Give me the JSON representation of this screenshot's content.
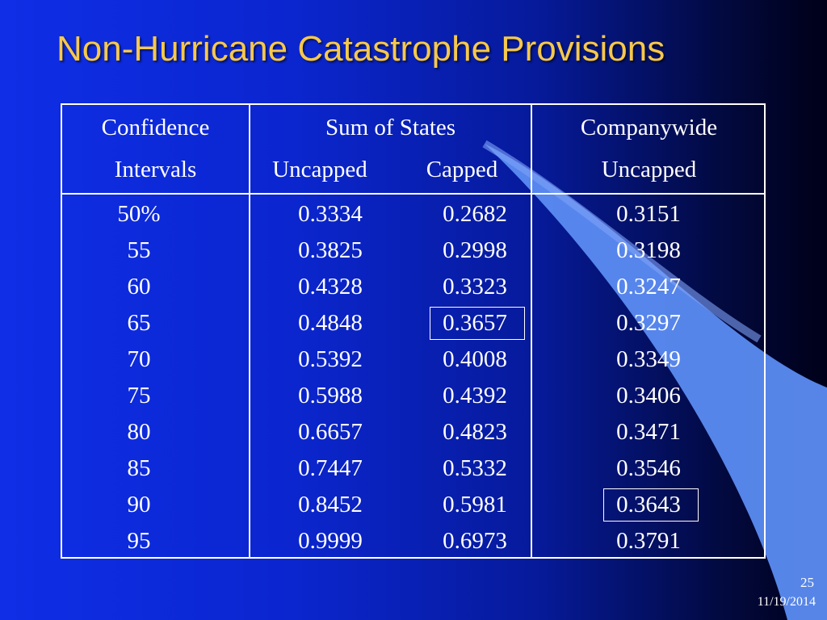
{
  "slide": {
    "title": "Non-Hurricane Catastrophe Provisions",
    "page_number": "25",
    "date": "11/19/2014"
  },
  "table": {
    "headers": {
      "col1_line1": "Confidence",
      "col1_line2": "Intervals",
      "col2_line1": "Sum of States",
      "col2_sub_a": "Uncapped",
      "col2_sub_b": "Capped",
      "col3_line1": "Companywide",
      "col3_line2": "Uncapped"
    },
    "rows": [
      {
        "ci": "50%",
        "uncapped": "0.3334",
        "capped": "0.2682",
        "companywide": "0.3151"
      },
      {
        "ci": "55",
        "uncapped": "0.3825",
        "capped": "0.2998",
        "companywide": "0.3198"
      },
      {
        "ci": "60",
        "uncapped": "0.4328",
        "capped": "0.3323",
        "companywide": "0.3247"
      },
      {
        "ci": "65",
        "uncapped": "0.4848",
        "capped": "0.3657",
        "companywide": "0.3297"
      },
      {
        "ci": "70",
        "uncapped": "0.5392",
        "capped": "0.4008",
        "companywide": "0.3349"
      },
      {
        "ci": "75",
        "uncapped": "0.5988",
        "capped": "0.4392",
        "companywide": "0.3406"
      },
      {
        "ci": "80",
        "uncapped": "0.6657",
        "capped": "0.4823",
        "companywide": "0.3471"
      },
      {
        "ci": "85",
        "uncapped": "0.7447",
        "capped": "0.5332",
        "companywide": "0.3546"
      },
      {
        "ci": "90",
        "uncapped": "0.8452",
        "capped": "0.5981",
        "companywide": "0.3643"
      },
      {
        "ci": "95",
        "uncapped": "0.9999",
        "capped": "0.6973",
        "companywide": "0.3791"
      }
    ],
    "highlighted": [
      {
        "row": 3,
        "col": "capped"
      },
      {
        "row": 8,
        "col": "companywide"
      }
    ]
  },
  "colors": {
    "title": "#f6c84c",
    "swoosh": "#5b8cf2",
    "text": "#ffffff"
  }
}
